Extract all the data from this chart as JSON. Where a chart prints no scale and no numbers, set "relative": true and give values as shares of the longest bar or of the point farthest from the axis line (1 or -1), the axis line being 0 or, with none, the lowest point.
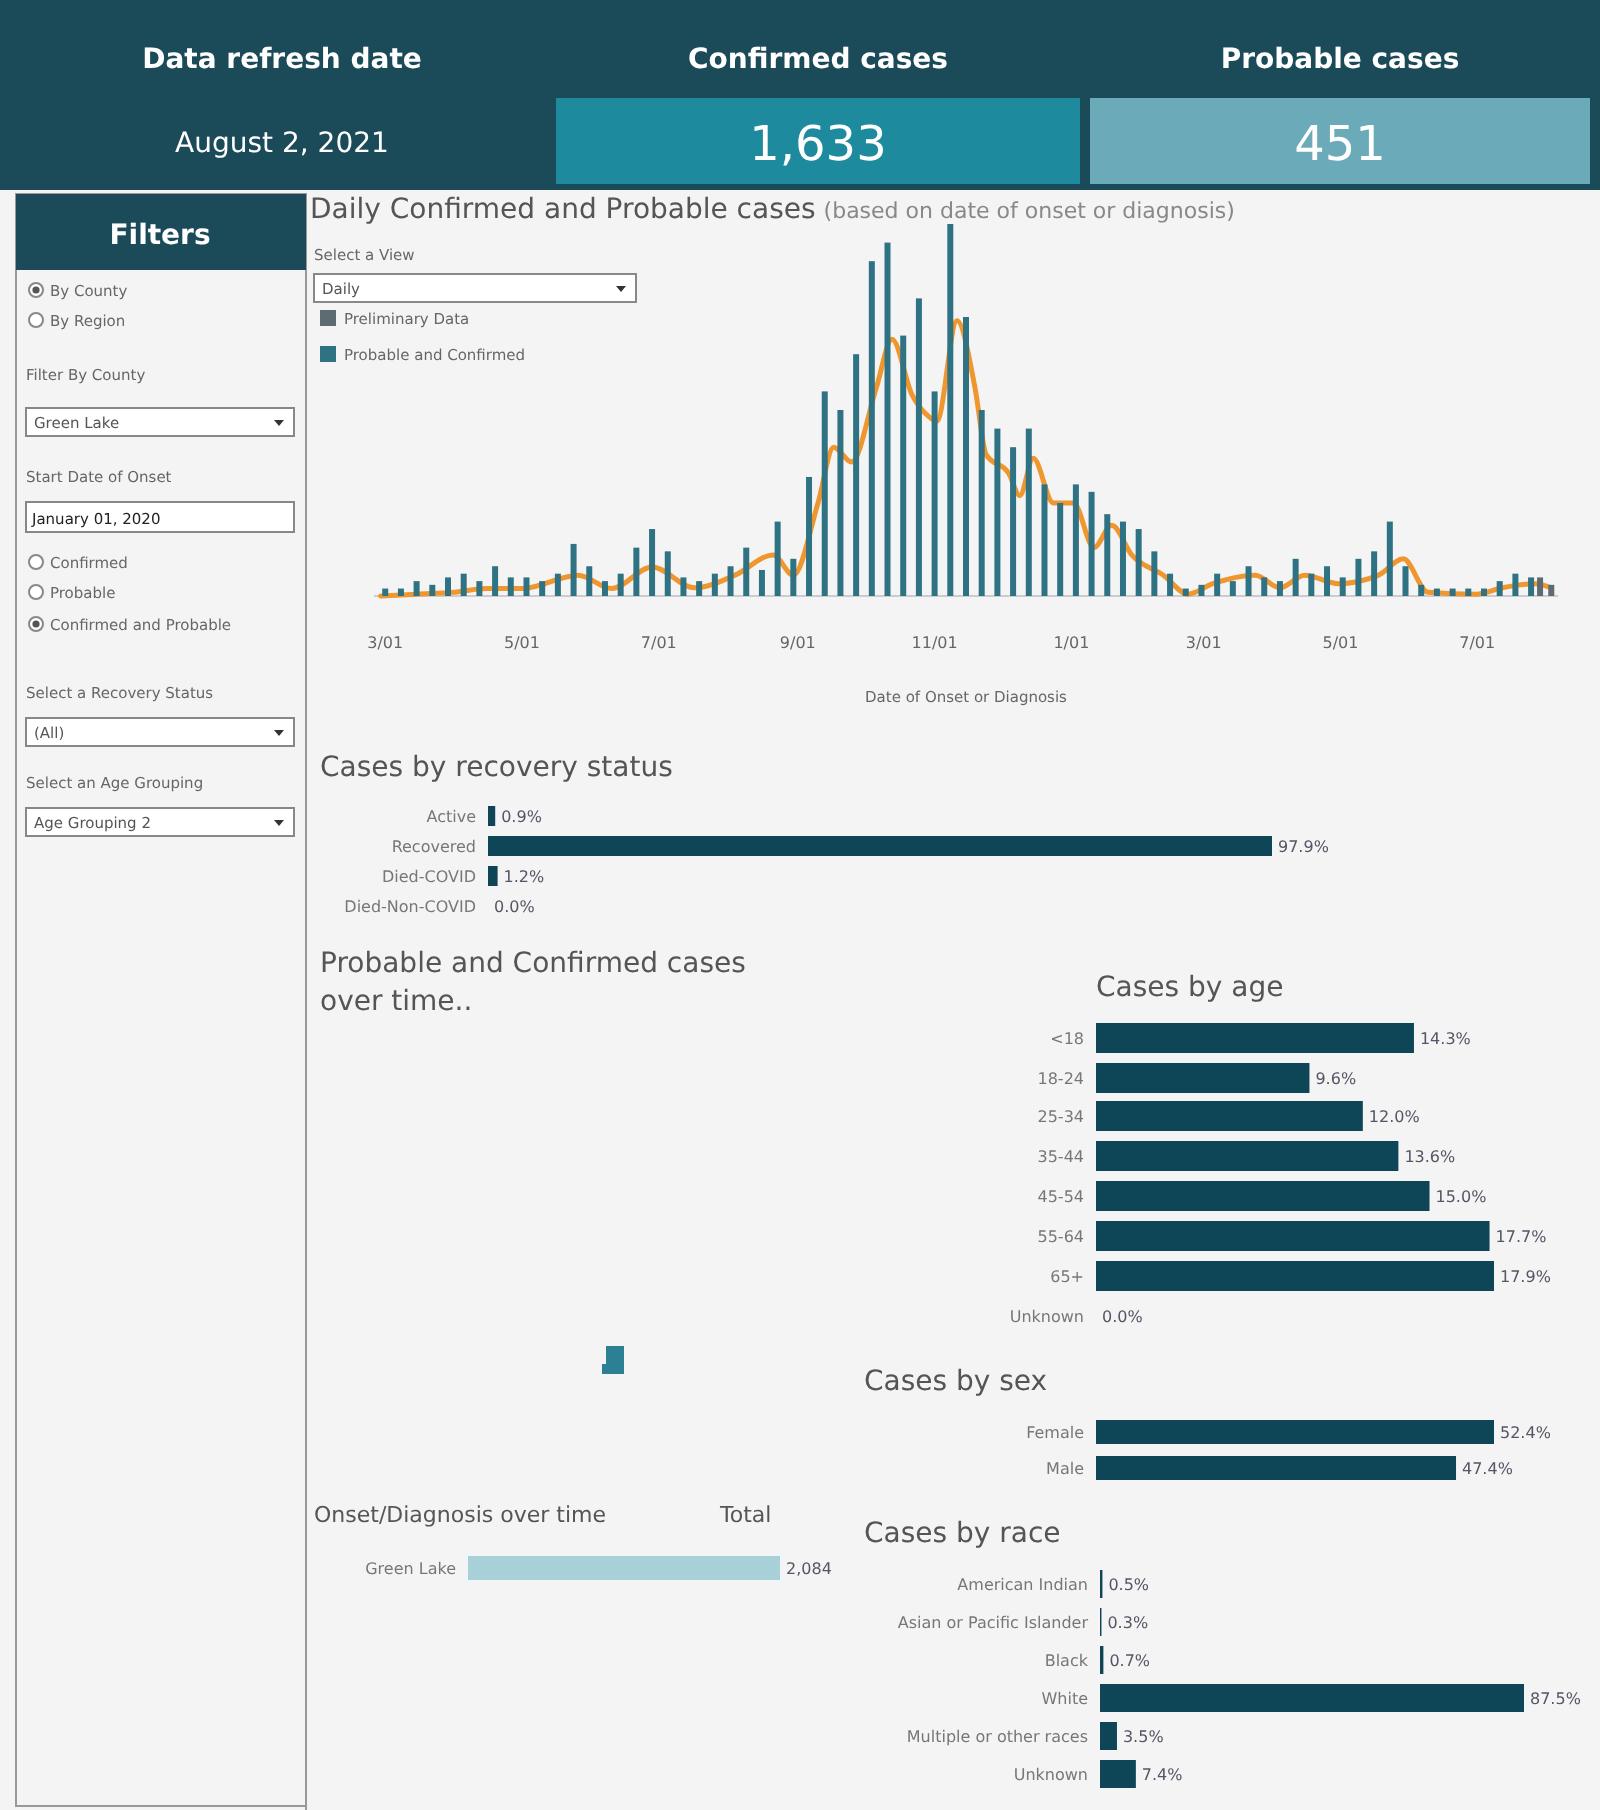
{
  "chart_data": [
    {
      "type": "other",
      "annotations": [
        "Data refresh date",
        "August 2, 2021",
        "Confirmed cases",
        "1,633",
        "Probable cases",
        "451"
      ]
    },
    {
      "type": "other",
      "title": "Filters",
      "annotations": [
        "By County",
        "By Region",
        "Filter By County",
        "Green Lake",
        "Start Date of Onset",
        "January 01, 2020",
        "Confirmed",
        "Probable",
        "Confirmed and Probable",
        "Select a Recovery Status",
        "(All)",
        "Select an Age Grouping",
        "Age Grouping 2"
      ]
    },
    {
      "type": "bar",
      "title": "Daily Confirmed and Probable cases",
      "subtitle": "(based on date of onset or diagnosis)",
      "xlabel": "Date of Onset or Diagnosis",
      "relative": true,
      "legend": "top left",
      "annotations": [
        "Select a View",
        "Daily"
      ],
      "xlim": [
        "2020-02-25",
        "2021-08-06"
      ],
      "xticks": [
        {
          "value": "2020-03-01",
          "label": "3/01"
        },
        {
          "value": "2020-05-01",
          "label": "5/01"
        },
        {
          "value": "2020-07-01",
          "label": "7/01"
        },
        {
          "value": "2020-09-01",
          "label": "9/01"
        },
        {
          "value": "2020-11-01",
          "label": "11/01"
        },
        {
          "value": "2021-01-01",
          "label": "1/01"
        },
        {
          "value": "2021-03-01",
          "label": "3/01"
        },
        {
          "value": "2021-05-01",
          "label": "5/01"
        },
        {
          "value": "2021-07-01",
          "label": "7/01"
        }
      ],
      "series": [
        {
          "name": "Preliminary Data",
          "type": "bar",
          "color": "#5f6b73",
          "x": [
            "2021-07-29",
            "2021-08-03"
          ],
          "values": [
            0.05,
            0.03
          ]
        },
        {
          "name": "Probable and Confirmed",
          "type": "bar",
          "color": "#2f7283",
          "x": [
            "2020-03-01",
            "2020-03-08",
            "2020-03-15",
            "2020-03-22",
            "2020-03-29",
            "2020-04-05",
            "2020-04-12",
            "2020-04-19",
            "2020-04-26",
            "2020-05-03",
            "2020-05-10",
            "2020-05-17",
            "2020-05-24",
            "2020-05-31",
            "2020-06-07",
            "2020-06-14",
            "2020-06-21",
            "2020-06-28",
            "2020-07-05",
            "2020-07-12",
            "2020-07-19",
            "2020-07-26",
            "2020-08-02",
            "2020-08-09",
            "2020-08-16",
            "2020-08-23",
            "2020-08-30",
            "2020-09-06",
            "2020-09-13",
            "2020-09-20",
            "2020-09-27",
            "2020-10-04",
            "2020-10-11",
            "2020-10-18",
            "2020-10-25",
            "2020-11-01",
            "2020-11-08",
            "2020-11-15",
            "2020-11-22",
            "2020-11-29",
            "2020-12-06",
            "2020-12-13",
            "2020-12-20",
            "2020-12-27",
            "2021-01-03",
            "2021-01-10",
            "2021-01-17",
            "2021-01-24",
            "2021-01-31",
            "2021-02-07",
            "2021-02-14",
            "2021-02-21",
            "2021-02-28",
            "2021-03-07",
            "2021-03-14",
            "2021-03-21",
            "2021-03-28",
            "2021-04-04",
            "2021-04-11",
            "2021-04-18",
            "2021-04-25",
            "2021-05-02",
            "2021-05-09",
            "2021-05-16",
            "2021-05-23",
            "2021-05-30",
            "2021-06-06",
            "2021-06-13",
            "2021-06-20",
            "2021-06-27",
            "2021-07-04",
            "2021-07-11",
            "2021-07-18",
            "2021-07-25"
          ],
          "values": [
            0.02,
            0.02,
            0.04,
            0.03,
            0.05,
            0.06,
            0.04,
            0.08,
            0.05,
            0.05,
            0.04,
            0.06,
            0.14,
            0.08,
            0.04,
            0.06,
            0.13,
            0.18,
            0.12,
            0.05,
            0.04,
            0.06,
            0.08,
            0.13,
            0.07,
            0.2,
            0.1,
            0.32,
            0.55,
            0.5,
            0.65,
            0.9,
            0.95,
            0.7,
            0.8,
            0.55,
            1.0,
            0.75,
            0.5,
            0.45,
            0.4,
            0.45,
            0.3,
            0.25,
            0.3,
            0.28,
            0.22,
            0.2,
            0.18,
            0.12,
            0.06,
            0.02,
            0.03,
            0.06,
            0.04,
            0.08,
            0.05,
            0.04,
            0.1,
            0.06,
            0.08,
            0.05,
            0.1,
            0.12,
            0.2,
            0.08,
            0.03,
            0.02,
            0.02,
            0.02,
            0.02,
            0.04,
            0.06,
            0.05
          ]
        },
        {
          "type": "line",
          "color": "#f0962e",
          "x": [
            "2020-02-28",
            "2020-03-15",
            "2020-04-01",
            "2020-04-15",
            "2020-05-01",
            "2020-05-26",
            "2020-06-10",
            "2020-06-28",
            "2020-07-17",
            "2020-08-04",
            "2020-08-21",
            "2020-08-30",
            "2020-09-10",
            "2020-09-17",
            "2020-09-25",
            "2020-10-06",
            "2020-10-13",
            "2020-10-22",
            "2020-10-28",
            "2020-11-02",
            "2020-11-11",
            "2020-11-19",
            "2020-11-24",
            "2020-12-04",
            "2020-12-09",
            "2020-12-15",
            "2020-12-24",
            "2021-01-02",
            "2021-01-11",
            "2021-01-19",
            "2021-01-28",
            "2021-02-11",
            "2021-02-22",
            "2021-03-05",
            "2021-03-24",
            "2021-04-04",
            "2021-04-15",
            "2021-04-30",
            "2021-05-18",
            "2021-05-29",
            "2021-06-09",
            "2021-07-01",
            "2021-07-12",
            "2021-07-27",
            "2021-08-03"
          ],
          "values": [
            0,
            0.005,
            0.01,
            0.02,
            0.02,
            0.056,
            0.02,
            0.078,
            0.022,
            0.056,
            0.11,
            0.056,
            0.25,
            0.4,
            0.36,
            0.56,
            0.69,
            0.54,
            0.49,
            0.47,
            0.74,
            0.56,
            0.38,
            0.33,
            0.27,
            0.37,
            0.25,
            0.25,
            0.13,
            0.19,
            0.11,
            0.056,
            0.005,
            0.033,
            0.056,
            0.022,
            0.056,
            0.033,
            0.056,
            0.1,
            0.01,
            0.005,
            0.022,
            0.033,
            0.022
          ]
        }
      ]
    },
    {
      "type": "bar",
      "orientation": "horizontal",
      "title": "Cases by recovery status",
      "categories": [
        "Active",
        "Recovered",
        "Died-COVID",
        "Died-Non-COVID"
      ],
      "values": [
        0.9,
        97.9,
        1.2,
        0.0
      ],
      "value_labels": [
        "0.9%",
        "97.9%",
        "1.2%",
        "0.0%"
      ],
      "color": "#0f4657"
    },
    {
      "type": "other",
      "title": "Probable and Confirmed cases over time.."
    },
    {
      "type": "bar",
      "orientation": "horizontal",
      "title": "Cases by age",
      "categories": [
        "<18",
        "18-24",
        "25-34",
        "35-44",
        "45-54",
        "55-64",
        "65+",
        "Unknown"
      ],
      "values": [
        14.3,
        9.6,
        12.0,
        13.6,
        15.0,
        17.7,
        17.9,
        0.0
      ],
      "value_labels": [
        "14.3%",
        "9.6%",
        "12.0%",
        "13.6%",
        "15.0%",
        "17.7%",
        "17.9%",
        "0.0%"
      ],
      "color": "#0f4657"
    },
    {
      "type": "bar",
      "orientation": "horizontal",
      "title": "Cases by sex",
      "categories": [
        "Female",
        "Male"
      ],
      "values": [
        52.4,
        47.4
      ],
      "value_labels": [
        "52.4%",
        "47.4%"
      ],
      "color": "#0f4657"
    },
    {
      "type": "bar",
      "orientation": "horizontal",
      "title": "Onset/Diagnosis over time",
      "annotations": [
        "Total"
      ],
      "categories": [
        "Green Lake"
      ],
      "values": [
        2084
      ],
      "value_labels": [
        "2,084"
      ],
      "color": "#a8d0d8"
    },
    {
      "type": "bar",
      "orientation": "horizontal",
      "title": "Cases by race",
      "categories": [
        "American Indian",
        "Asian or Pacific Islander",
        "Black",
        "White",
        "Multiple or other races",
        "Unknown"
      ],
      "values": [
        0.5,
        0.3,
        0.7,
        87.5,
        3.5,
        7.4
      ],
      "value_labels": [
        "0.5%",
        "0.3%",
        "0.7%",
        "87.5%",
        "3.5%",
        "7.4%"
      ],
      "color": "#0f4657"
    }
  ]
}
